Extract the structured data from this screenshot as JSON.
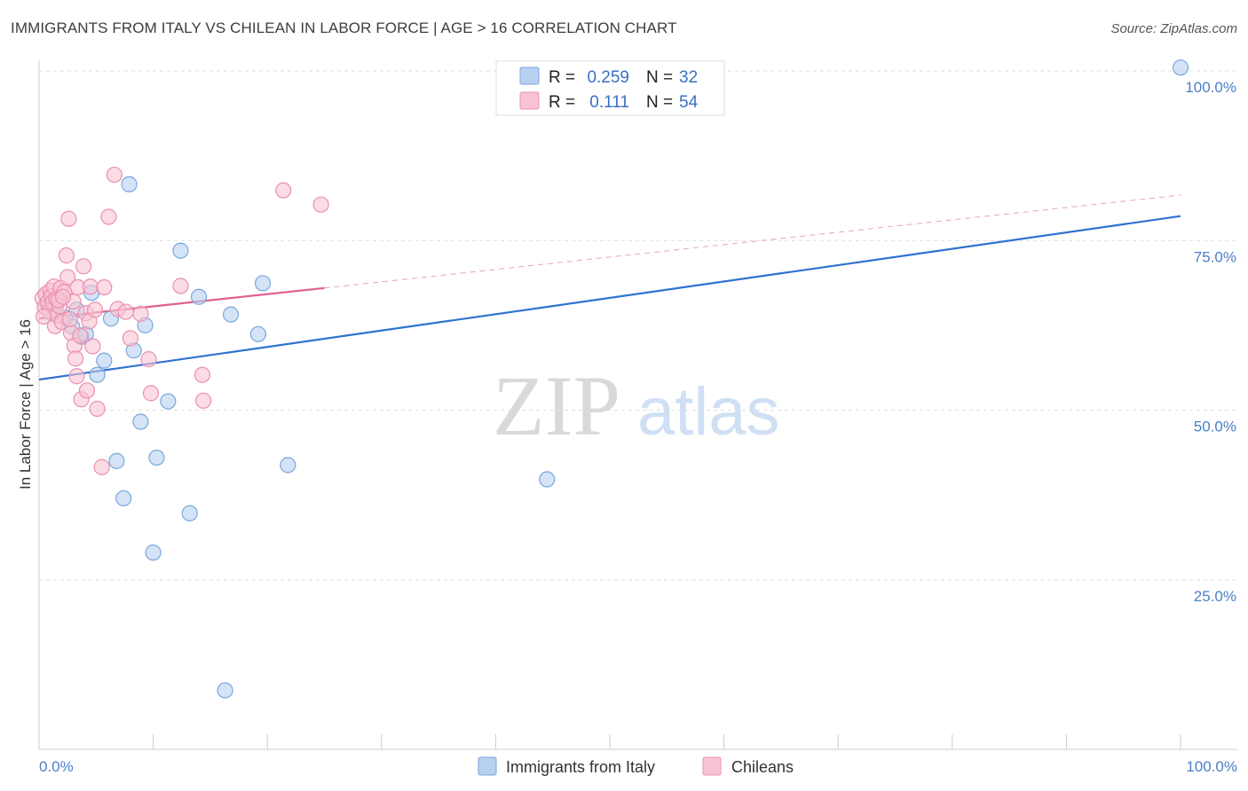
{
  "title": "IMMIGRANTS FROM ITALY VS CHILEAN IN LABOR FORCE | AGE > 16 CORRELATION CHART",
  "source": "Source: ZipAtlas.com",
  "watermark": {
    "zip": "ZIP",
    "atlas": "atlas"
  },
  "legend": {
    "rows": [
      {
        "r_label": "R =",
        "r_value": "0.259",
        "n_label": "N =",
        "n_value": "32"
      },
      {
        "r_label": "R =",
        "r_value": "0.111",
        "n_label": "N =",
        "n_value": "54"
      }
    ]
  },
  "bottom_legend": [
    "Immigrants from Italy",
    "Chileans"
  ],
  "colors": {
    "italy_fill": "#b8d0f0",
    "italy_stroke": "#7aa6dd",
    "italy_line": "#2f72d0",
    "chile_fill": "#f8c4d4",
    "chile_stroke": "#eb8fb0",
    "chile_line": "#e0608e",
    "axis_label": "#4a7fc8",
    "grid": "#dddddd"
  },
  "chart_data": {
    "type": "scatter",
    "title": "IMMIGRANTS FROM ITALY VS CHILEAN IN LABOR FORCE | AGE > 16 CORRELATION CHART",
    "xlabel": "",
    "ylabel": "In Labor Force | Age > 16",
    "xlim": [
      0,
      100
    ],
    "ylim": [
      0,
      103
    ],
    "x_tick_labels": [
      "0.0%",
      "100.0%"
    ],
    "y_ticks": [
      25,
      50,
      75,
      100
    ],
    "y_tick_labels": [
      "25.0%",
      "50.0%",
      "75.0%",
      "100.0%"
    ],
    "grid": true,
    "series": [
      {
        "name": "Immigrants from Italy",
        "r": 0.259,
        "n": 32,
        "trend": {
          "x": [
            0,
            100
          ],
          "y": [
            54.5,
            78.6
          ],
          "style": "solid"
        },
        "points": [
          {
            "x": 0.7,
            "y": 65.8
          },
          {
            "x": 1.2,
            "y": 64.2
          },
          {
            "x": 1.8,
            "y": 66.4
          },
          {
            "x": 2.3,
            "y": 63.6
          },
          {
            "x": 2.9,
            "y": 62.3
          },
          {
            "x": 3.3,
            "y": 64.8
          },
          {
            "x": 3.7,
            "y": 60.8
          },
          {
            "x": 4.1,
            "y": 61.2
          },
          {
            "x": 4.6,
            "y": 67.3
          },
          {
            "x": 5.1,
            "y": 55.2
          },
          {
            "x": 5.7,
            "y": 57.3
          },
          {
            "x": 6.3,
            "y": 63.5
          },
          {
            "x": 6.8,
            "y": 42.5
          },
          {
            "x": 7.4,
            "y": 37.0
          },
          {
            "x": 7.9,
            "y": 83.3
          },
          {
            "x": 8.3,
            "y": 58.8
          },
          {
            "x": 8.9,
            "y": 48.3
          },
          {
            "x": 9.3,
            "y": 62.5
          },
          {
            "x": 10.0,
            "y": 29.0
          },
          {
            "x": 10.3,
            "y": 43.0
          },
          {
            "x": 11.3,
            "y": 51.3
          },
          {
            "x": 12.4,
            "y": 73.5
          },
          {
            "x": 13.2,
            "y": 34.8
          },
          {
            "x": 14.0,
            "y": 66.7
          },
          {
            "x": 16.3,
            "y": 8.7
          },
          {
            "x": 16.8,
            "y": 64.1
          },
          {
            "x": 19.2,
            "y": 61.2
          },
          {
            "x": 19.6,
            "y": 68.7
          },
          {
            "x": 21.8,
            "y": 41.9
          },
          {
            "x": 44.5,
            "y": 39.8
          },
          {
            "x": 100.0,
            "y": 100.5
          },
          {
            "x": 1.5,
            "y": 65.5
          }
        ]
      },
      {
        "name": "Chileans",
        "r": 0.111,
        "n": 54,
        "trend": {
          "x": [
            0,
            25
          ],
          "y": [
            63.5,
            68.0
          ],
          "style": "solid",
          "ext_x": [
            25,
            100
          ],
          "ext_y": [
            68.0,
            81.7
          ],
          "ext_style": "dashed"
        },
        "points": [
          {
            "x": 0.3,
            "y": 66.5
          },
          {
            "x": 0.5,
            "y": 65.2
          },
          {
            "x": 0.6,
            "y": 67.1
          },
          {
            "x": 0.8,
            "y": 66.0
          },
          {
            "x": 0.9,
            "y": 64.5
          },
          {
            "x": 1.0,
            "y": 67.6
          },
          {
            "x": 1.1,
            "y": 66.8
          },
          {
            "x": 1.2,
            "y": 65.9
          },
          {
            "x": 1.3,
            "y": 68.2
          },
          {
            "x": 1.4,
            "y": 62.4
          },
          {
            "x": 1.5,
            "y": 66.4
          },
          {
            "x": 1.6,
            "y": 64.0
          },
          {
            "x": 1.8,
            "y": 65.3
          },
          {
            "x": 1.9,
            "y": 68.0
          },
          {
            "x": 2.0,
            "y": 63.0
          },
          {
            "x": 2.2,
            "y": 67.4
          },
          {
            "x": 2.4,
            "y": 72.8
          },
          {
            "x": 2.5,
            "y": 69.6
          },
          {
            "x": 2.6,
            "y": 78.2
          },
          {
            "x": 2.8,
            "y": 61.4
          },
          {
            "x": 3.0,
            "y": 66.0
          },
          {
            "x": 3.1,
            "y": 59.5
          },
          {
            "x": 3.2,
            "y": 57.6
          },
          {
            "x": 3.3,
            "y": 55.0
          },
          {
            "x": 3.4,
            "y": 68.1
          },
          {
            "x": 3.6,
            "y": 61.0
          },
          {
            "x": 3.7,
            "y": 51.6
          },
          {
            "x": 3.9,
            "y": 71.2
          },
          {
            "x": 4.1,
            "y": 64.3
          },
          {
            "x": 4.2,
            "y": 52.9
          },
          {
            "x": 4.4,
            "y": 63.1
          },
          {
            "x": 4.5,
            "y": 68.2
          },
          {
            "x": 4.7,
            "y": 59.4
          },
          {
            "x": 4.9,
            "y": 64.8
          },
          {
            "x": 5.1,
            "y": 50.2
          },
          {
            "x": 5.5,
            "y": 41.6
          },
          {
            "x": 5.7,
            "y": 68.1
          },
          {
            "x": 6.1,
            "y": 78.5
          },
          {
            "x": 6.6,
            "y": 84.7
          },
          {
            "x": 6.9,
            "y": 64.9
          },
          {
            "x": 7.6,
            "y": 64.5
          },
          {
            "x": 8.0,
            "y": 60.6
          },
          {
            "x": 8.9,
            "y": 64.2
          },
          {
            "x": 9.6,
            "y": 57.5
          },
          {
            "x": 9.8,
            "y": 52.5
          },
          {
            "x": 12.4,
            "y": 68.3
          },
          {
            "x": 14.3,
            "y": 55.2
          },
          {
            "x": 14.4,
            "y": 51.4
          },
          {
            "x": 21.4,
            "y": 82.4
          },
          {
            "x": 24.7,
            "y": 80.3
          },
          {
            "x": 0.4,
            "y": 63.8
          },
          {
            "x": 1.7,
            "y": 66.2
          },
          {
            "x": 2.1,
            "y": 66.7
          },
          {
            "x": 2.7,
            "y": 63.4
          }
        ]
      }
    ]
  }
}
